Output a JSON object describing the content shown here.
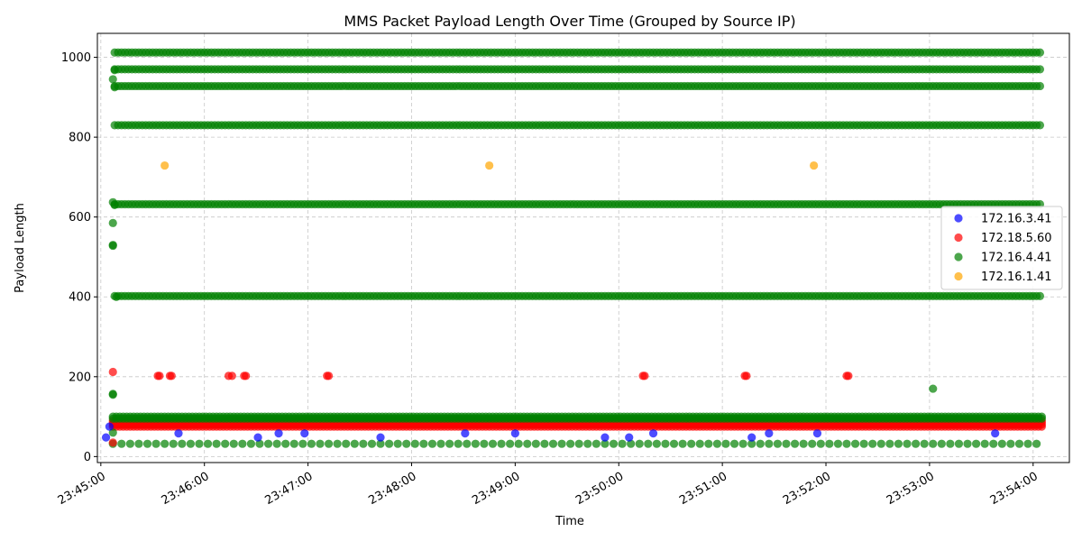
{
  "chart_data": {
    "type": "scatter",
    "title": "MMS Packet Payload Length Over Time (Grouped by Source IP)",
    "xlabel": "Time",
    "ylabel": "Payload Length",
    "xlim": [
      "23:44:58",
      "23:54:21"
    ],
    "ylim": [
      -15,
      1060
    ],
    "x_ticks": [
      "23:45:00",
      "23:46:00",
      "23:47:00",
      "23:48:00",
      "23:49:00",
      "23:50:00",
      "23:51:00",
      "23:52:00",
      "23:53:00",
      "23:54:00"
    ],
    "y_ticks": [
      0,
      200,
      400,
      600,
      800,
      1000
    ],
    "grid": true,
    "legend_position": "center-right",
    "series": [
      {
        "name": "172.16.3.41",
        "color": "#0000ff",
        "points": [
          [
            "23:45:03",
            48
          ],
          [
            "23:45:05",
            75
          ],
          [
            "23:45:45",
            58
          ],
          [
            "23:46:31",
            48
          ],
          [
            "23:46:43",
            58
          ],
          [
            "23:46:58",
            58
          ],
          [
            "23:47:42",
            48
          ],
          [
            "23:48:31",
            58
          ],
          [
            "23:49:00",
            58
          ],
          [
            "23:49:52",
            48
          ],
          [
            "23:50:06",
            48
          ],
          [
            "23:50:20",
            58
          ],
          [
            "23:51:17",
            48
          ],
          [
            "23:51:27",
            58
          ],
          [
            "23:51:55",
            58
          ],
          [
            "23:53:38",
            58
          ]
        ]
      },
      {
        "name": "172.18.5.60",
        "color": "#ff0000",
        "points": [
          [
            "23:45:07",
            212
          ],
          [
            "23:45:07",
            35
          ],
          [
            "23:45:33",
            202
          ],
          [
            "23:45:34",
            202
          ],
          [
            "23:45:40",
            202
          ],
          [
            "23:45:41",
            202
          ],
          [
            "23:46:14",
            202
          ],
          [
            "23:46:16",
            202
          ],
          [
            "23:46:23",
            202
          ],
          [
            "23:46:24",
            202
          ],
          [
            "23:47:11",
            202
          ],
          [
            "23:47:12",
            202
          ],
          [
            "23:50:14",
            202
          ],
          [
            "23:50:15",
            202
          ],
          [
            "23:51:13",
            202
          ],
          [
            "23:51:14",
            202
          ],
          [
            "23:52:12",
            202
          ],
          [
            "23:52:13",
            202
          ]
        ],
        "bands": [
          {
            "y": [
              75,
              80,
              85,
              90
            ],
            "from": "23:45:07",
            "to": "23:54:05",
            "step_seconds": 2
          }
        ]
      },
      {
        "name": "172.16.4.41",
        "color": "#008000",
        "points": [
          [
            "23:45:07",
            945
          ],
          [
            "23:45:07",
            637
          ],
          [
            "23:45:07",
            585
          ],
          [
            "23:45:07",
            530
          ],
          [
            "23:45:07",
            528
          ],
          [
            "23:45:07",
            157
          ],
          [
            "23:45:07",
            155
          ],
          [
            "23:45:07",
            60
          ],
          [
            "23:45:08",
            968
          ],
          [
            "23:45:08",
            630
          ],
          [
            "23:45:08",
            925
          ],
          [
            "23:45:09",
            400
          ],
          [
            "23:53:02",
            170
          ]
        ],
        "bands": [
          {
            "y": [
              1012,
              970,
              928,
              830,
              632,
              402
            ],
            "from": "23:45:08",
            "to": "23:54:05",
            "step_seconds": 2
          },
          {
            "y": [
              95,
              100
            ],
            "from": "23:45:07",
            "to": "23:54:05",
            "step_seconds": 2
          },
          {
            "y": [
              32
            ],
            "from": "23:45:07",
            "to": "23:54:05",
            "step_seconds": 5
          }
        ]
      },
      {
        "name": "172.16.1.41",
        "color": "#ffa500",
        "points": [
          [
            "23:45:37",
            729
          ],
          [
            "23:48:45",
            729
          ],
          [
            "23:51:53",
            729
          ]
        ]
      }
    ]
  }
}
